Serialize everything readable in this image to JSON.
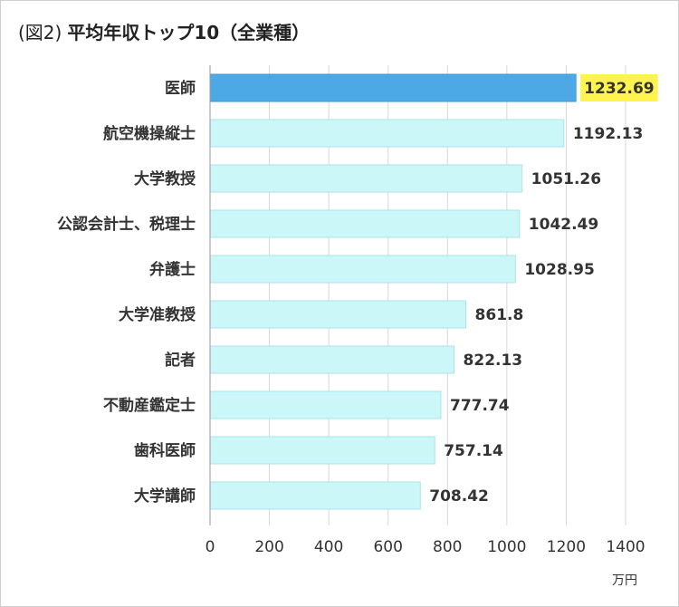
{
  "title": {
    "prefix": "(図2)",
    "main": "平均年収トップ10（全業種）"
  },
  "chart_data": {
    "type": "bar",
    "orientation": "horizontal",
    "categories": [
      "医師",
      "航空機操縦士",
      "大学教授",
      "公認会計士、税理士",
      "弁護士",
      "大学准教授",
      "記者",
      "不動産鑑定士",
      "歯科医師",
      "大学講師"
    ],
    "values": [
      1232.69,
      1192.13,
      1051.26,
      1042.49,
      1028.95,
      861.8,
      822.13,
      777.74,
      757.14,
      708.42
    ],
    "value_labels": [
      "1232.69",
      "1192.13",
      "1051.26",
      "1042.49",
      "1028.95",
      "861.8",
      "822.13",
      "777.74",
      "757.14",
      "708.42"
    ],
    "xticks": [
      "0",
      "200",
      "400",
      "600",
      "800",
      "1000",
      "1200",
      "1400"
    ],
    "xlim": [
      0,
      1400
    ],
    "unit": "万円",
    "grid": "vertical",
    "highlight_index": 0,
    "colors": {
      "bar": "#ccf7f9",
      "bar_border": "#a9e4ea",
      "highlight_bar": "#4da9e6",
      "highlight_label_bg": "#fff34d",
      "grid": "#d8d8d8",
      "axis": "#9a9a9a"
    }
  }
}
